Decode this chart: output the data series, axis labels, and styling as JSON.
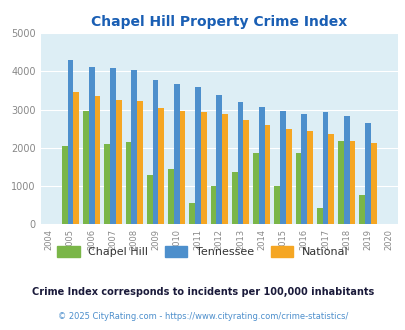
{
  "title": "Chapel Hill Property Crime Index",
  "years": [
    2004,
    2005,
    2006,
    2007,
    2008,
    2009,
    2010,
    2011,
    2012,
    2013,
    2014,
    2015,
    2016,
    2017,
    2018,
    2019,
    2020
  ],
  "chapel_hill": [
    0,
    2050,
    2950,
    2100,
    2150,
    1280,
    1450,
    560,
    1000,
    1380,
    1870,
    1000,
    1870,
    430,
    2190,
    770,
    0
  ],
  "tennessee": [
    0,
    4300,
    4100,
    4080,
    4040,
    3760,
    3660,
    3600,
    3370,
    3190,
    3060,
    2950,
    2880,
    2930,
    2840,
    2640,
    0
  ],
  "national": [
    0,
    3450,
    3360,
    3240,
    3220,
    3030,
    2960,
    2940,
    2880,
    2730,
    2590,
    2480,
    2450,
    2350,
    2190,
    2130,
    0
  ],
  "bar_width": 0.27,
  "chapel_hill_color": "#7ab648",
  "tennessee_color": "#4d8fcc",
  "national_color": "#f5a623",
  "bg_color": "#ddeef5",
  "ylim": [
    0,
    5000
  ],
  "yticks": [
    0,
    1000,
    2000,
    3000,
    4000,
    5000
  ],
  "legend_labels": [
    "Chapel Hill",
    "Tennessee",
    "National"
  ],
  "footnote1": "Crime Index corresponds to incidents per 100,000 inhabitants",
  "footnote2": "© 2025 CityRating.com - https://www.cityrating.com/crime-statistics/",
  "title_color": "#1a5fb4",
  "footnote1_color": "#1a1a3a",
  "footnote2_color": "#4d8fcc",
  "tick_color": "#888888"
}
